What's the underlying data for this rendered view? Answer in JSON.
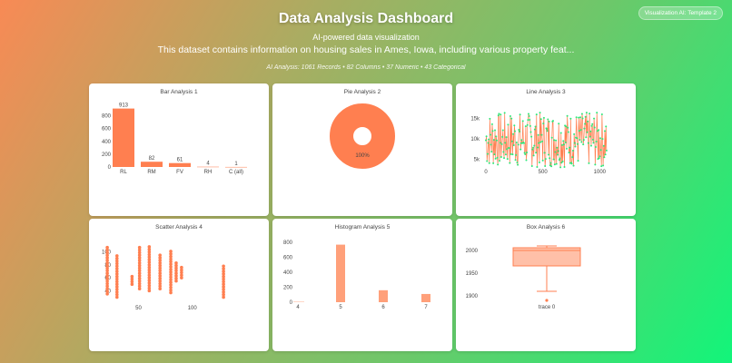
{
  "header": {
    "title": "Data Analysis Dashboard",
    "subtitle": "AI-powered data visualization",
    "description": "This dataset contains information on housing sales in Ames, Iowa, including various property feat...",
    "stats": "AI Analysis: 1061 Records • 82 Columns • 37 Numeric • 43 Categorical",
    "badge": "Visualization AI: Template 2"
  },
  "colors": {
    "primary": "#ff7f50",
    "line_markers": "#2ee87a"
  },
  "chart_data": [
    {
      "type": "bar",
      "title": "Bar Analysis 1",
      "categories": [
        "RL",
        "RM",
        "FV",
        "RH",
        "C (all)"
      ],
      "values": [
        913,
        82,
        61,
        4,
        1
      ],
      "ylim": [
        0,
        950
      ],
      "yticks": [
        0,
        200,
        400,
        600,
        800
      ]
    },
    {
      "type": "pie",
      "title": "Pie Analysis 2",
      "labels": [
        "100%"
      ],
      "values": [
        100
      ],
      "hole": true
    },
    {
      "type": "line",
      "title": "Line Analysis 3",
      "xlim": [
        0,
        1061
      ],
      "ylim": [
        2000,
        17500
      ],
      "xticks": [
        0,
        500,
        1000
      ],
      "ytick_labels": [
        "5k",
        "10k",
        "15k"
      ],
      "yticks": [
        5000,
        10000,
        15000
      ],
      "note_values": "noisy series between ~3k and ~16.5k"
    },
    {
      "type": "scatter",
      "title": "Scatter Analysis 4",
      "xlim": [
        15,
        150
      ],
      "ylim": [
        25,
        115
      ],
      "xticks": [
        50,
        100
      ],
      "yticks": [
        40,
        60,
        80,
        100
      ],
      "columns": [
        {
          "x": 21,
          "y": [
            35,
            110
          ]
        },
        {
          "x": 30,
          "y": [
            30,
            95
          ]
        },
        {
          "x": 44,
          "y": [
            50,
            65
          ]
        },
        {
          "x": 51,
          "y": [
            43,
            110
          ]
        },
        {
          "x": 60,
          "y": [
            40,
            108
          ]
        },
        {
          "x": 70,
          "y": [
            43,
            97
          ]
        },
        {
          "x": 80,
          "y": [
            37,
            103
          ]
        },
        {
          "x": 85,
          "y": [
            55,
            83
          ]
        },
        {
          "x": 90,
          "y": [
            60,
            78
          ]
        },
        {
          "x": 129,
          "y": [
            30,
            80
          ]
        }
      ]
    },
    {
      "type": "bar",
      "title": "Histogram Analysis 5",
      "categories": [
        "4",
        "5",
        "6",
        "7"
      ],
      "values": [
        5,
        770,
        160,
        110
      ],
      "ylim": [
        0,
        850
      ],
      "yticks": [
        0,
        200,
        400,
        600,
        800
      ]
    },
    {
      "type": "box",
      "title": "Box Analysis 6",
      "trace": "trace 0",
      "min": 1910,
      "q1": 1966,
      "median": 2000,
      "q3": 2006,
      "max": 2010,
      "outliers": [
        1890
      ],
      "ylim": [
        1880,
        2020
      ],
      "yticks": [
        1900,
        1950,
        2000
      ]
    }
  ]
}
